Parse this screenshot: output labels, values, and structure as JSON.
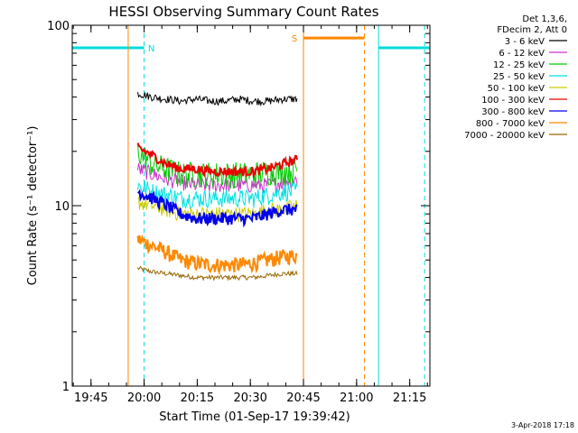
{
  "chart_data": {
    "type": "line",
    "title": "HESSI Observing Summary Count Rates",
    "xlabel": "Start Time (01-Sep-17 19:39:42)",
    "ylabel": "Count Rate (s⁻¹ detector⁻¹)",
    "yscale": "log",
    "ylim": [
      1,
      100
    ],
    "xlim_minutes_since_19_39_42": [
      0,
      101
    ],
    "grid": false,
    "legend_position": "top-right",
    "x_ticks": [
      {
        "label": "19:45",
        "t": 5.3
      },
      {
        "label": "20:00",
        "t": 20.3
      },
      {
        "label": "20:15",
        "t": 35.3
      },
      {
        "label": "20:30",
        "t": 50.3
      },
      {
        "label": "20:45",
        "t": 65.3
      },
      {
        "label": "21:00",
        "t": 80.3
      },
      {
        "label": "21:15",
        "t": 95.3
      }
    ],
    "y_ticks": [
      {
        "label": "1",
        "v": 1
      },
      {
        "label": "10",
        "v": 10
      },
      {
        "label": "100",
        "v": 100
      }
    ],
    "legend_header": [
      "Det 1,3,6,",
      "FDecim 2, Att 0"
    ],
    "series": [
      {
        "name": "3 - 6 keV",
        "color": "#000000",
        "t0": 18.5,
        "t1": 63.5,
        "values": [
          42,
          40,
          39,
          38,
          39,
          38,
          38,
          39,
          38,
          38,
          39,
          39
        ],
        "noise": 0.05
      },
      {
        "name": "6 - 12 keV",
        "color": "#cc33cc",
        "t0": 18.5,
        "t1": 63.5,
        "values": [
          16,
          15,
          14,
          13.5,
          13,
          13,
          13,
          13,
          13,
          13,
          13.5,
          14
        ],
        "noise": 0.1
      },
      {
        "name": "12 - 25 keV",
        "color": "#00cc00",
        "t0": 18.5,
        "t1": 63.5,
        "values": [
          20,
          17,
          16,
          15,
          15,
          15,
          15,
          15,
          15,
          15.5,
          15.5,
          16
        ],
        "noise": 0.17
      },
      {
        "name": "25 - 50 keV",
        "color": "#00e0e0",
        "t0": 18.5,
        "t1": 63.5,
        "values": [
          13,
          12,
          11.5,
          11,
          11,
          11,
          11,
          11,
          11,
          11.5,
          12,
          12
        ],
        "noise": 0.12
      },
      {
        "name": "50 - 100 keV",
        "color": "#cccc00",
        "t0": 18.5,
        "t1": 63.5,
        "values": [
          10.5,
          10,
          9.5,
          9,
          9,
          9,
          9,
          9,
          9,
          9.5,
          9.5,
          10
        ],
        "noise": 0.1
      },
      {
        "name": "100 - 300 keV",
        "color": "#ee0000",
        "t0": 18.5,
        "t1": 63.5,
        "values": [
          21,
          19,
          17,
          16,
          16,
          15.5,
          15.5,
          15.5,
          15.5,
          16,
          17,
          18
        ],
        "noise": 0.06
      },
      {
        "name": "300 - 800 keV",
        "color": "#0000ee",
        "t0": 18.5,
        "t1": 63.5,
        "values": [
          12,
          11,
          10,
          9,
          8.5,
          8.5,
          8.5,
          8.5,
          8.5,
          9,
          9.5,
          9.5
        ],
        "noise": 0.08
      },
      {
        "name": "800 - 7000 keV",
        "color": "#ff8800",
        "t0": 18.5,
        "t1": 63.5,
        "values": [
          6.5,
          6,
          5.5,
          5,
          4.8,
          4.7,
          4.7,
          4.7,
          4.8,
          5,
          5.2,
          5.3
        ],
        "noise": 0.1
      },
      {
        "name": "7000 - 20000 keV",
        "color": "#996600",
        "t0": 18.5,
        "t1": 63.5,
        "values": [
          4.5,
          4.3,
          4.2,
          4.1,
          4.0,
          4.0,
          4.0,
          4.0,
          4.0,
          4.1,
          4.2,
          4.2
        ],
        "noise": 0.03
      }
    ],
    "markers": {
      "night": {
        "label": "N",
        "color": "#00dddd",
        "segments": [
          [
            0,
            20.3
          ],
          [
            86.5,
            101
          ]
        ],
        "value": 75,
        "solid_lines": [
          0,
          86.5
        ],
        "dashed_lines": [
          20.3,
          99.5
        ]
      },
      "saa": {
        "label": "S",
        "color": "#ff8800",
        "segments": [
          [
            65.3,
            82.5
          ]
        ],
        "value": 85,
        "solid_lines": [
          15.8,
          65.3
        ],
        "dashed_lines": [
          82.5
        ]
      }
    }
  },
  "footer": {
    "date_stamp": "3-Apr-2018 17:18"
  }
}
